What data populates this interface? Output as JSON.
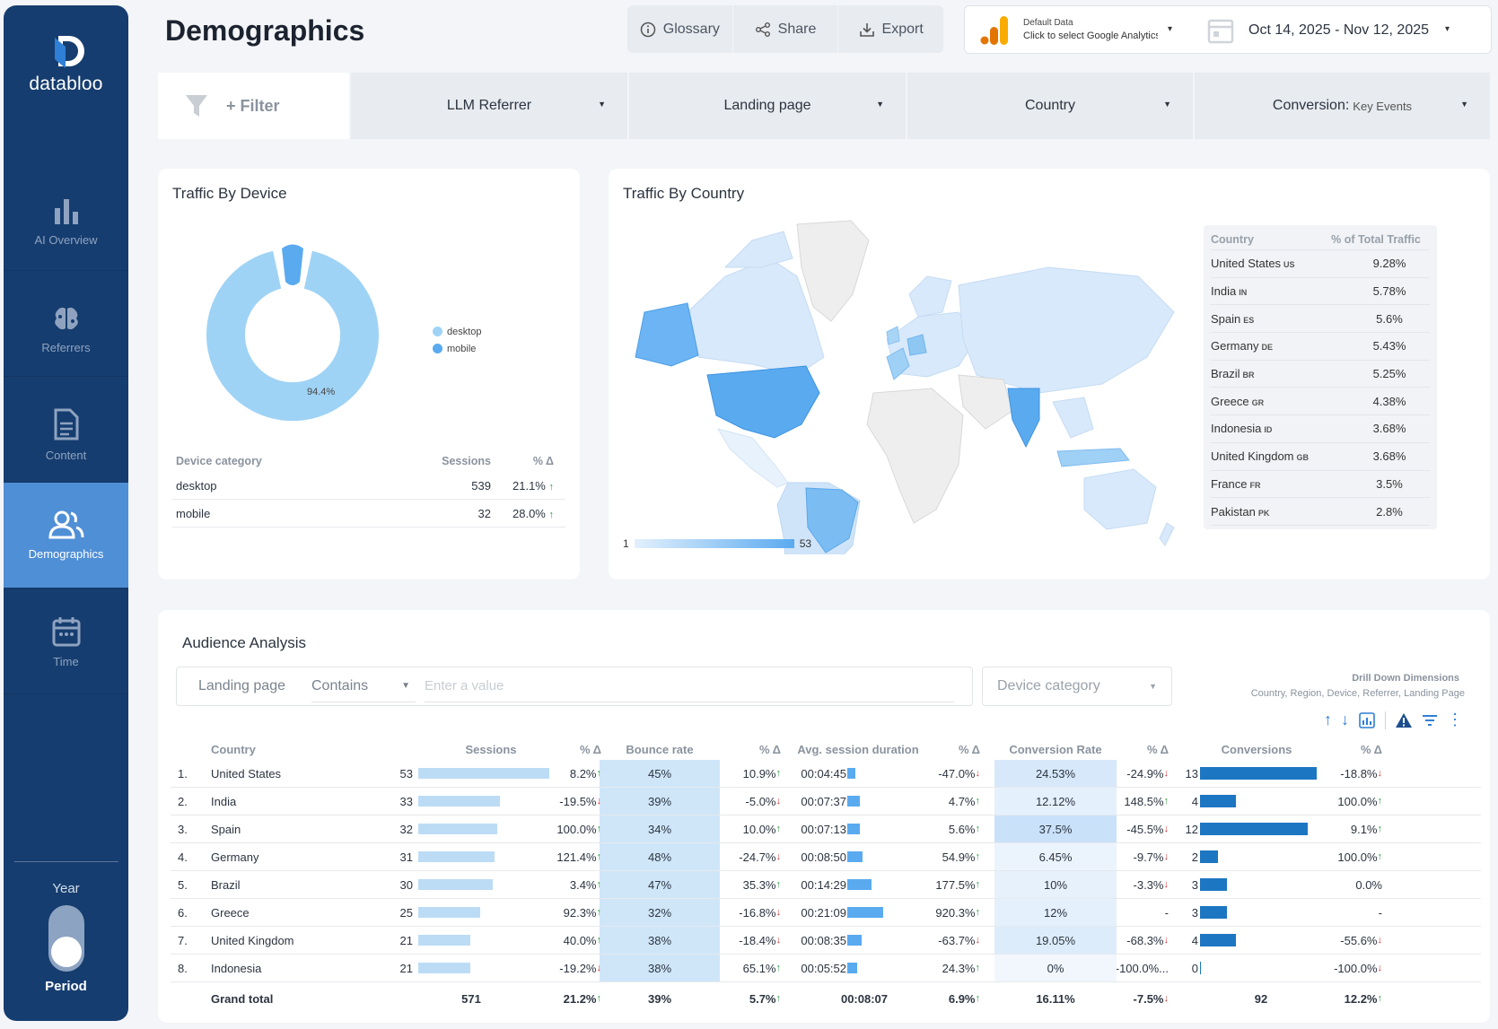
{
  "brand": {
    "name": "databloo"
  },
  "sidebar": {
    "items": [
      {
        "label": "AI Overview",
        "icon": "bar-chart-icon"
      },
      {
        "label": "Referrers",
        "icon": "brain-icon"
      },
      {
        "label": "Content",
        "icon": "document-icon"
      },
      {
        "label": "Demographics",
        "icon": "users-icon",
        "active": true
      },
      {
        "label": "Time",
        "icon": "calendar-icon"
      }
    ],
    "toggle_top": "Year",
    "toggle_bottom": "Period"
  },
  "header": {
    "title": "Demographics",
    "buttons": {
      "glossary": "Glossary",
      "share": "Share",
      "export": "Export"
    },
    "datasource": {
      "line1": "Default Data",
      "line2": "Click to select Google Analytics"
    },
    "date_range": "Oct 14, 2025 - Nov 12, 2025"
  },
  "filters": {
    "add": "+ Filter",
    "llm": "LLM Referrer",
    "landing": "Landing page",
    "country": "Country",
    "conversion_label": "Conversion:",
    "conversion_value": "Key Events"
  },
  "device_card": {
    "title": "Traffic By Device",
    "donut_label": "94.4%",
    "legend": [
      "desktop",
      "mobile"
    ],
    "table": {
      "headers": [
        "Device category",
        "Sessions",
        "% Δ"
      ],
      "rows": [
        {
          "device": "desktop",
          "sessions": "539",
          "delta": "21.1%",
          "dir": "up"
        },
        {
          "device": "mobile",
          "sessions": "32",
          "delta": "28.0%",
          "dir": "up"
        }
      ]
    }
  },
  "country_card": {
    "title": "Traffic By Country",
    "table_headers": [
      "Country",
      "% of Total Traffic"
    ],
    "rows": [
      {
        "name": "United States",
        "code": "US",
        "pct": "9.28%"
      },
      {
        "name": "India",
        "code": "IN",
        "pct": "5.78%"
      },
      {
        "name": "Spain",
        "code": "ES",
        "pct": "5.6%"
      },
      {
        "name": "Germany",
        "code": "DE",
        "pct": "5.43%"
      },
      {
        "name": "Brazil",
        "code": "BR",
        "pct": "5.25%"
      },
      {
        "name": "Greece",
        "code": "GR",
        "pct": "4.38%"
      },
      {
        "name": "Indonesia",
        "code": "ID",
        "pct": "3.68%"
      },
      {
        "name": "United Kingdom",
        "code": "GB",
        "pct": "3.68%"
      },
      {
        "name": "France",
        "code": "FR",
        "pct": "3.5%"
      },
      {
        "name": "Pakistan",
        "code": "PK",
        "pct": "2.8%"
      }
    ],
    "scale_min": "1",
    "scale_max": "53"
  },
  "audience": {
    "title": "Audience Analysis",
    "filter_field": "Landing page",
    "filter_op": "Contains",
    "filter_placeholder": "Enter a value",
    "device_select": "Device category",
    "drill_title": "Drill Down Dimensions",
    "drill_sub": "Country, Region, Device, Referrer, Landing Page",
    "headers": [
      "Country",
      "Sessions",
      "% Δ",
      "Bounce rate",
      "% Δ",
      "Avg. session duration",
      "% Δ",
      "Conversion Rate",
      "% Δ",
      "Conversions",
      "% Δ"
    ],
    "rows": [
      {
        "n": "1.",
        "country": "United States",
        "sessions": "53",
        "s_d": "8.2%",
        "s_dir": "up",
        "bounce": "45%",
        "b_d": "10.9%",
        "b_dir": "up",
        "dur": "00:04:45",
        "dur_s": 285,
        "d_d": "-47.0%",
        "d_dir": "down",
        "cr": "24.53%",
        "cr_d": "-24.9%",
        "cr_dir": "down",
        "conv": "13",
        "cv_d": "-18.8%",
        "cv_dir": "down"
      },
      {
        "n": "2.",
        "country": "India",
        "sessions": "33",
        "s_d": "-19.5%",
        "s_dir": "down",
        "bounce": "39%",
        "b_d": "-5.0%",
        "b_dir": "down",
        "dur": "00:07:37",
        "dur_s": 457,
        "d_d": "4.7%",
        "d_dir": "up",
        "cr": "12.12%",
        "cr_d": "148.5%",
        "cr_dir": "up",
        "conv": "4",
        "cv_d": "100.0%",
        "cv_dir": "up"
      },
      {
        "n": "3.",
        "country": "Spain",
        "sessions": "32",
        "s_d": "100.0%",
        "s_dir": "up",
        "bounce": "34%",
        "b_d": "10.0%",
        "b_dir": "up",
        "dur": "00:07:13",
        "dur_s": 433,
        "d_d": "5.6%",
        "d_dir": "up",
        "cr": "37.5%",
        "cr_d": "-45.5%",
        "cr_dir": "down",
        "conv": "12",
        "cv_d": "9.1%",
        "cv_dir": "up"
      },
      {
        "n": "4.",
        "country": "Germany",
        "sessions": "31",
        "s_d": "121.4%",
        "s_dir": "up",
        "bounce": "48%",
        "b_d": "-24.7%",
        "b_dir": "down",
        "dur": "00:08:50",
        "dur_s": 530,
        "d_d": "54.9%",
        "d_dir": "up",
        "cr": "6.45%",
        "cr_d": "-9.7%",
        "cr_dir": "down",
        "conv": "2",
        "cv_d": "100.0%",
        "cv_dir": "up"
      },
      {
        "n": "5.",
        "country": "Brazil",
        "sessions": "30",
        "s_d": "3.4%",
        "s_dir": "up",
        "bounce": "47%",
        "b_d": "35.3%",
        "b_dir": "up",
        "dur": "00:14:29",
        "dur_s": 869,
        "d_d": "177.5%",
        "d_dir": "up",
        "cr": "10%",
        "cr_d": "-3.3%",
        "cr_dir": "down",
        "conv": "3",
        "cv_d": "0.0%",
        "cv_dir": ""
      },
      {
        "n": "6.",
        "country": "Greece",
        "sessions": "25",
        "s_d": "92.3%",
        "s_dir": "up",
        "bounce": "32%",
        "b_d": "-16.8%",
        "b_dir": "down",
        "dur": "00:21:09",
        "dur_s": 1269,
        "d_d": "920.3%",
        "d_dir": "up",
        "cr": "12%",
        "cr_d": "-",
        "cr_dir": "",
        "conv": "3",
        "cv_d": "-",
        "cv_dir": ""
      },
      {
        "n": "7.",
        "country": "United Kingdom",
        "sessions": "21",
        "s_d": "40.0%",
        "s_dir": "up",
        "bounce": "38%",
        "b_d": "-18.4%",
        "b_dir": "down",
        "dur": "00:08:35",
        "dur_s": 515,
        "d_d": "-63.7%",
        "d_dir": "down",
        "cr": "19.05%",
        "cr_d": "-68.3%",
        "cr_dir": "down",
        "conv": "4",
        "cv_d": "-55.6%",
        "cv_dir": "down"
      },
      {
        "n": "8.",
        "country": "Indonesia",
        "sessions": "21",
        "s_d": "-19.2%",
        "s_dir": "down",
        "bounce": "38%",
        "b_d": "65.1%",
        "b_dir": "up",
        "dur": "00:05:52",
        "dur_s": 352,
        "d_d": "24.3%",
        "d_dir": "up",
        "cr": "0%",
        "cr_d": "-100.0%...",
        "cr_dir": "",
        "conv": "0",
        "cv_d": "-100.0%",
        "cv_dir": "down"
      }
    ],
    "total": {
      "label": "Grand total",
      "sessions": "571",
      "s_d": "21.2%",
      "s_dir": "up",
      "bounce": "39%",
      "b_d": "5.7%",
      "b_dir": "up",
      "dur": "00:08:07",
      "d_d": "6.9%",
      "d_dir": "up",
      "cr": "16.11%",
      "cr_d": "-7.5%",
      "cr_dir": "down",
      "conv": "92",
      "cv_d": "12.2%",
      "cv_dir": "up"
    }
  },
  "colors": {
    "sidebar": "#163d6f",
    "active": "#4f8fd6",
    "desktop": "#9fd3f5",
    "mobile": "#5aaaf0",
    "up": "#2f9e44",
    "down": "#e03131"
  }
}
